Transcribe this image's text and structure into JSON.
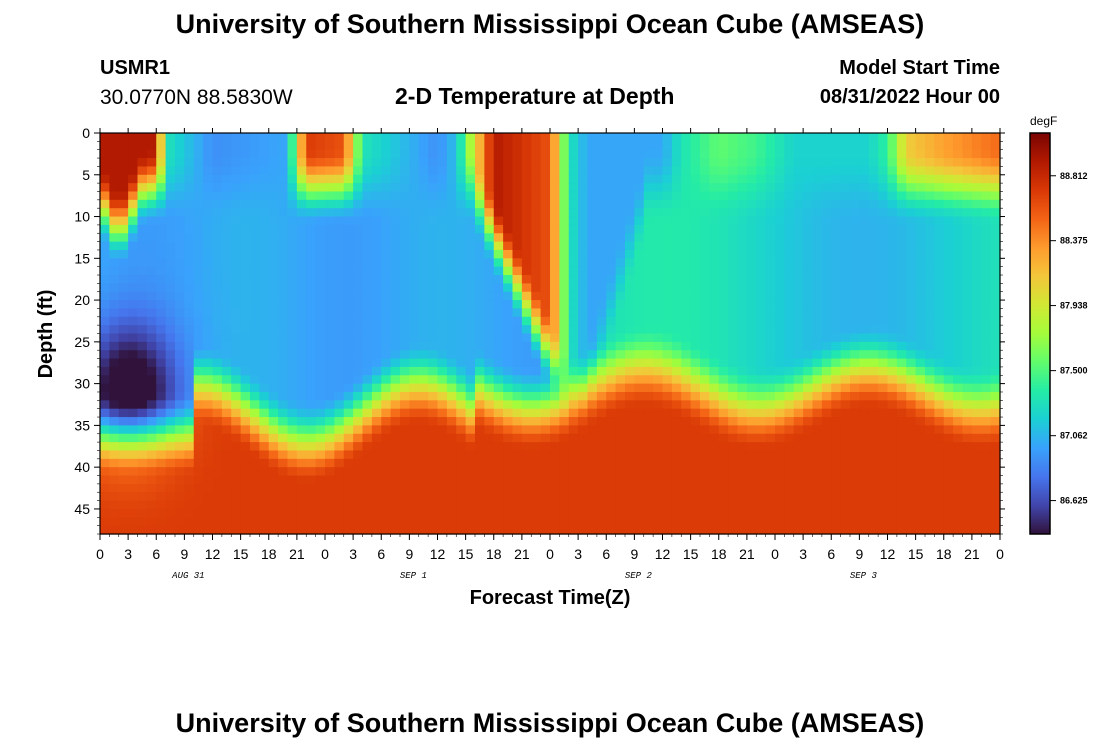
{
  "header": {
    "title": "University of Southern Mississippi Ocean Cube (AMSEAS)",
    "station_id": "USMR1",
    "coordinates": "30.0770N  88.5830W",
    "plot_title": "2-D Temperature at Depth",
    "model_start_label": "Model Start Time",
    "model_start_value": "08/31/2022 Hour 00"
  },
  "footer": {
    "title": "University of Southern Mississippi Ocean Cube (AMSEAS)"
  },
  "colors": {
    "colormap": [
      "#30123b",
      "#4145ab",
      "#4675ed",
      "#39a2fc",
      "#1bcfd4",
      "#24eca6",
      "#61fc6c",
      "#a4fc3b",
      "#d1e834",
      "#f3c63a",
      "#fe9b2d",
      "#f36315",
      "#d93806",
      "#b11901",
      "#7a0403"
    ]
  },
  "chart_data": {
    "type": "heatmap",
    "title": "2-D Temperature at Depth",
    "xlabel": "Forecast Time(Z)",
    "ylabel": "Depth (ft)",
    "x_tick_labels": [
      "0",
      "3",
      "6",
      "9",
      "12",
      "15",
      "18",
      "21",
      "0",
      "3",
      "6",
      "9",
      "12",
      "15",
      "18",
      "21",
      "0",
      "3",
      "6",
      "9",
      "12",
      "15",
      "18",
      "21",
      "0",
      "3",
      "6",
      "9",
      "12",
      "15",
      "18",
      "21",
      "0"
    ],
    "date_labels": [
      {
        "text": "AUG 31",
        "hour": 9
      },
      {
        "text": "SEP 1",
        "hour": 33
      },
      {
        "text": "SEP 2",
        "hour": 57
      },
      {
        "text": "SEP 3",
        "hour": 81
      }
    ],
    "x_range_hours": [
      0,
      96
    ],
    "y_ticks": [
      0,
      5,
      10,
      15,
      20,
      25,
      30,
      35,
      40,
      45
    ],
    "y_range_ft": [
      0,
      48
    ],
    "colorbar": {
      "unit": "degF",
      "ticks": [
        "88.812",
        "88.375",
        "87.938",
        "87.500",
        "87.062",
        "86.625"
      ],
      "tick_values": [
        88.812,
        88.375,
        87.938,
        87.5,
        87.062,
        86.625
      ],
      "range": [
        86.4,
        89.1
      ]
    },
    "surface_profile_hours": [
      0,
      6,
      7,
      12,
      20,
      22,
      26,
      28,
      36,
      38,
      42,
      48,
      50,
      52,
      60,
      62,
      66,
      70,
      74,
      82,
      84,
      86,
      90,
      96
    ],
    "surface_profile_temps": [
      88.9,
      88.9,
      87.3,
      86.9,
      87.0,
      88.7,
      88.6,
      87.3,
      86.9,
      87.1,
      88.9,
      88.6,
      87.3,
      87.0,
      87.0,
      87.3,
      87.55,
      87.45,
      87.2,
      87.2,
      87.4,
      88.1,
      88.3,
      88.5
    ],
    "minimum_temperature": {
      "hour": 3,
      "depth_ft": 31,
      "value": 86.45
    },
    "bottom_temperature": 88.7
  }
}
